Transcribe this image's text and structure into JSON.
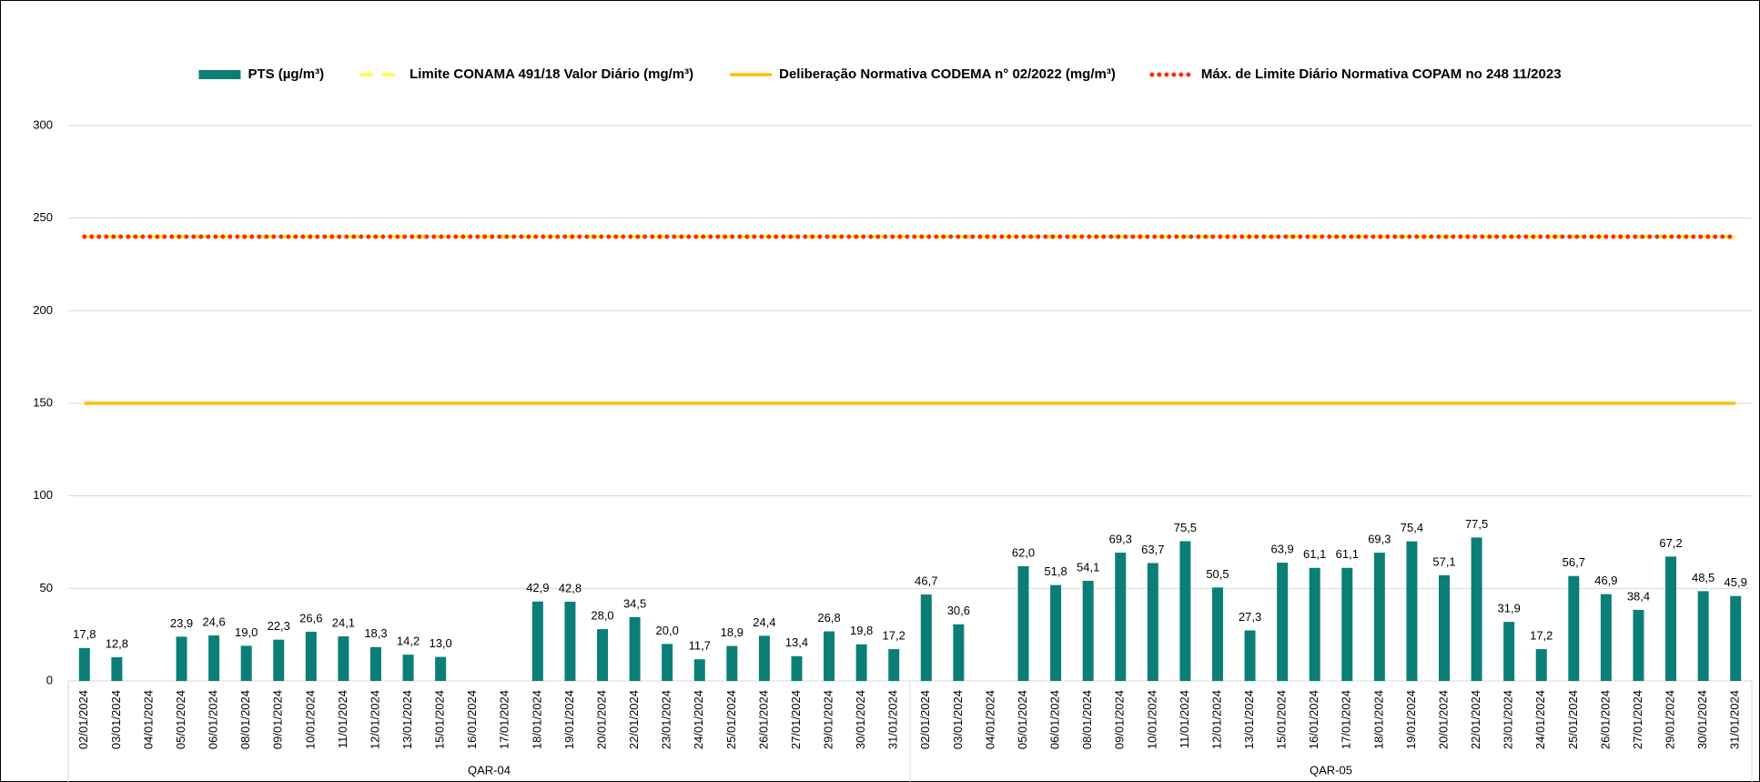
{
  "chart_data": {
    "type": "bar",
    "groups": [
      {
        "name": "QAR-04",
        "categories": [
          "02/01/2024",
          "03/01/2024",
          "04/01/2024",
          "05/01/2024",
          "06/01/2024",
          "08/01/2024",
          "09/01/2024",
          "10/01/2024",
          "11/01/2024",
          "12/01/2024",
          "13/01/2024",
          "15/01/2024",
          "16/01/2024",
          "17/01/2024",
          "18/01/2024",
          "19/01/2024",
          "20/01/2024",
          "22/01/2024",
          "23/01/2024",
          "24/01/2024",
          "25/01/2024",
          "26/01/2024",
          "27/01/2024",
          "29/01/2024",
          "30/01/2024",
          "31/01/2024"
        ]
      },
      {
        "name": "QAR-05",
        "categories": [
          "02/01/2024",
          "03/01/2024",
          "04/01/2024",
          "05/01/2024",
          "06/01/2024",
          "08/01/2024",
          "09/01/2024",
          "10/01/2024",
          "11/01/2024",
          "12/01/2024",
          "13/01/2024",
          "15/01/2024",
          "16/01/2024",
          "17/01/2024",
          "18/01/2024",
          "19/01/2024",
          "20/01/2024",
          "22/01/2024",
          "23/01/2024",
          "24/01/2024",
          "25/01/2024",
          "26/01/2024",
          "27/01/2024",
          "29/01/2024",
          "30/01/2024",
          "31/01/2024"
        ]
      }
    ],
    "series": [
      {
        "name": "PTS (µg/m³)",
        "type": "bar",
        "color": "#0b7f77",
        "values": [
          17.8,
          12.8,
          null,
          23.9,
          24.6,
          19.0,
          22.3,
          26.6,
          24.1,
          18.3,
          14.2,
          13.0,
          null,
          null,
          42.9,
          42.8,
          28.0,
          34.5,
          20.0,
          11.7,
          18.9,
          24.4,
          13.4,
          26.8,
          19.8,
          17.2,
          46.7,
          30.6,
          null,
          62.0,
          51.8,
          54.1,
          69.3,
          63.7,
          75.5,
          50.5,
          27.3,
          63.9,
          61.1,
          61.1,
          69.3,
          75.4,
          57.1,
          77.5,
          31.9,
          17.2,
          56.7,
          46.9,
          38.4,
          67.2,
          48.5,
          45.9
        ],
        "value_labels": [
          "17,8",
          "12,8",
          null,
          "23,9",
          "24,6",
          "19,0",
          "22,3",
          "26,6",
          "24,1",
          "18,3",
          "14,2",
          "13,0",
          null,
          null,
          "42,9",
          "42,8",
          "28,0",
          "34,5",
          "20,0",
          "11,7",
          "18,9",
          "24,4",
          "13,4",
          "26,8",
          "19,8",
          "17,2",
          "46,7",
          "30,6",
          null,
          "62,0",
          "51,8",
          "54,1",
          "69,3",
          "63,7",
          "75,5",
          "50,5",
          "27,3",
          "63,9",
          "61,1",
          "61,1",
          "69,3",
          "75,4",
          "57,1",
          "77,5",
          "31,9",
          "17,2",
          "56,7",
          "46,9",
          "38,4",
          "67,2",
          "48,5",
          "45,9"
        ]
      },
      {
        "name": "Limite CONAMA 491/18  Valor Diário (mg/m³)",
        "type": "line",
        "style": "dashed",
        "color": "#ffff33",
        "values": [
          240,
          240,
          240,
          240,
          240,
          240,
          240,
          240,
          240,
          240,
          240,
          240,
          240,
          240,
          240,
          240,
          240,
          240,
          240,
          240,
          240,
          240,
          240,
          240,
          240,
          240,
          240,
          240,
          240,
          240,
          240,
          240,
          240,
          240,
          240,
          240,
          240,
          240,
          240,
          240,
          240,
          240,
          240,
          240,
          240,
          240,
          240,
          240,
          240,
          240,
          240,
          240
        ]
      },
      {
        "name": "Deliberação Normativa CODEMA n° 02/2022 (mg/m³)",
        "type": "line",
        "style": "solid",
        "color": "#ffc000",
        "values": [
          150,
          150,
          150,
          150,
          150,
          150,
          150,
          150,
          150,
          150,
          150,
          150,
          150,
          150,
          150,
          150,
          150,
          150,
          150,
          150,
          150,
          150,
          150,
          150,
          150,
          150,
          150,
          150,
          150,
          150,
          150,
          150,
          150,
          150,
          150,
          150,
          150,
          150,
          150,
          150,
          150,
          150,
          150,
          150,
          150,
          150,
          150,
          150,
          150,
          150,
          150,
          150
        ]
      },
      {
        "name": "Máx. de Limite Diário Normativa COPAM no 248 11/2023",
        "type": "line",
        "style": "dotted",
        "color": "#ff2a00",
        "values": [
          240,
          240,
          240,
          240,
          240,
          240,
          240,
          240,
          240,
          240,
          240,
          240,
          240,
          240,
          240,
          240,
          240,
          240,
          240,
          240,
          240,
          240,
          240,
          240,
          240,
          240,
          240,
          240,
          240,
          240,
          240,
          240,
          240,
          240,
          240,
          240,
          240,
          240,
          240,
          240,
          240,
          240,
          240,
          240,
          240,
          240,
          240,
          240,
          240,
          240,
          240,
          240
        ]
      }
    ],
    "ylim": [
      0,
      300
    ],
    "yticks": [
      0,
      50,
      100,
      150,
      200,
      250,
      300
    ],
    "grid": true,
    "legend": "top"
  }
}
